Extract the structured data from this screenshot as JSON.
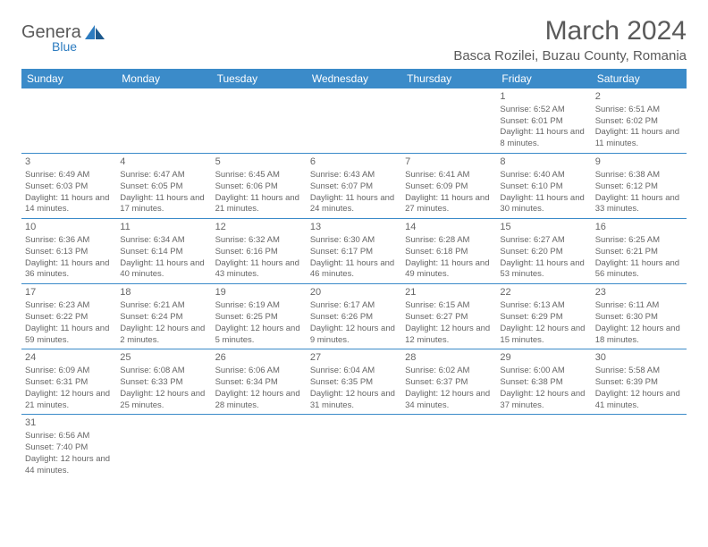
{
  "logo": {
    "text1": "Genera",
    "text2": "Blue"
  },
  "title": "March 2024",
  "location": "Basca Rozilei, Buzau County, Romania",
  "colors": {
    "header_bg": "#3b8bc9",
    "header_text": "#ffffff",
    "body_text": "#666666",
    "title_text": "#5a5a5a",
    "accent_blue": "#2d7cc0",
    "border": "#3b8bc9",
    "page_bg": "#ffffff"
  },
  "weekdays": [
    "Sunday",
    "Monday",
    "Tuesday",
    "Wednesday",
    "Thursday",
    "Friday",
    "Saturday"
  ],
  "weeks": [
    [
      null,
      null,
      null,
      null,
      null,
      {
        "n": "1",
        "sr": "6:52 AM",
        "ss": "6:01 PM",
        "dl": "11 hours and 8 minutes."
      },
      {
        "n": "2",
        "sr": "6:51 AM",
        "ss": "6:02 PM",
        "dl": "11 hours and 11 minutes."
      }
    ],
    [
      {
        "n": "3",
        "sr": "6:49 AM",
        "ss": "6:03 PM",
        "dl": "11 hours and 14 minutes."
      },
      {
        "n": "4",
        "sr": "6:47 AM",
        "ss": "6:05 PM",
        "dl": "11 hours and 17 minutes."
      },
      {
        "n": "5",
        "sr": "6:45 AM",
        "ss": "6:06 PM",
        "dl": "11 hours and 21 minutes."
      },
      {
        "n": "6",
        "sr": "6:43 AM",
        "ss": "6:07 PM",
        "dl": "11 hours and 24 minutes."
      },
      {
        "n": "7",
        "sr": "6:41 AM",
        "ss": "6:09 PM",
        "dl": "11 hours and 27 minutes."
      },
      {
        "n": "8",
        "sr": "6:40 AM",
        "ss": "6:10 PM",
        "dl": "11 hours and 30 minutes."
      },
      {
        "n": "9",
        "sr": "6:38 AM",
        "ss": "6:12 PM",
        "dl": "11 hours and 33 minutes."
      }
    ],
    [
      {
        "n": "10",
        "sr": "6:36 AM",
        "ss": "6:13 PM",
        "dl": "11 hours and 36 minutes."
      },
      {
        "n": "11",
        "sr": "6:34 AM",
        "ss": "6:14 PM",
        "dl": "11 hours and 40 minutes."
      },
      {
        "n": "12",
        "sr": "6:32 AM",
        "ss": "6:16 PM",
        "dl": "11 hours and 43 minutes."
      },
      {
        "n": "13",
        "sr": "6:30 AM",
        "ss": "6:17 PM",
        "dl": "11 hours and 46 minutes."
      },
      {
        "n": "14",
        "sr": "6:28 AM",
        "ss": "6:18 PM",
        "dl": "11 hours and 49 minutes."
      },
      {
        "n": "15",
        "sr": "6:27 AM",
        "ss": "6:20 PM",
        "dl": "11 hours and 53 minutes."
      },
      {
        "n": "16",
        "sr": "6:25 AM",
        "ss": "6:21 PM",
        "dl": "11 hours and 56 minutes."
      }
    ],
    [
      {
        "n": "17",
        "sr": "6:23 AM",
        "ss": "6:22 PM",
        "dl": "11 hours and 59 minutes."
      },
      {
        "n": "18",
        "sr": "6:21 AM",
        "ss": "6:24 PM",
        "dl": "12 hours and 2 minutes."
      },
      {
        "n": "19",
        "sr": "6:19 AM",
        "ss": "6:25 PM",
        "dl": "12 hours and 5 minutes."
      },
      {
        "n": "20",
        "sr": "6:17 AM",
        "ss": "6:26 PM",
        "dl": "12 hours and 9 minutes."
      },
      {
        "n": "21",
        "sr": "6:15 AM",
        "ss": "6:27 PM",
        "dl": "12 hours and 12 minutes."
      },
      {
        "n": "22",
        "sr": "6:13 AM",
        "ss": "6:29 PM",
        "dl": "12 hours and 15 minutes."
      },
      {
        "n": "23",
        "sr": "6:11 AM",
        "ss": "6:30 PM",
        "dl": "12 hours and 18 minutes."
      }
    ],
    [
      {
        "n": "24",
        "sr": "6:09 AM",
        "ss": "6:31 PM",
        "dl": "12 hours and 21 minutes."
      },
      {
        "n": "25",
        "sr": "6:08 AM",
        "ss": "6:33 PM",
        "dl": "12 hours and 25 minutes."
      },
      {
        "n": "26",
        "sr": "6:06 AM",
        "ss": "6:34 PM",
        "dl": "12 hours and 28 minutes."
      },
      {
        "n": "27",
        "sr": "6:04 AM",
        "ss": "6:35 PM",
        "dl": "12 hours and 31 minutes."
      },
      {
        "n": "28",
        "sr": "6:02 AM",
        "ss": "6:37 PM",
        "dl": "12 hours and 34 minutes."
      },
      {
        "n": "29",
        "sr": "6:00 AM",
        "ss": "6:38 PM",
        "dl": "12 hours and 37 minutes."
      },
      {
        "n": "30",
        "sr": "5:58 AM",
        "ss": "6:39 PM",
        "dl": "12 hours and 41 minutes."
      }
    ],
    [
      {
        "n": "31",
        "sr": "6:56 AM",
        "ss": "7:40 PM",
        "dl": "12 hours and 44 minutes."
      },
      null,
      null,
      null,
      null,
      null,
      null
    ]
  ],
  "labels": {
    "sunrise": "Sunrise: ",
    "sunset": "Sunset: ",
    "daylight": "Daylight: "
  }
}
